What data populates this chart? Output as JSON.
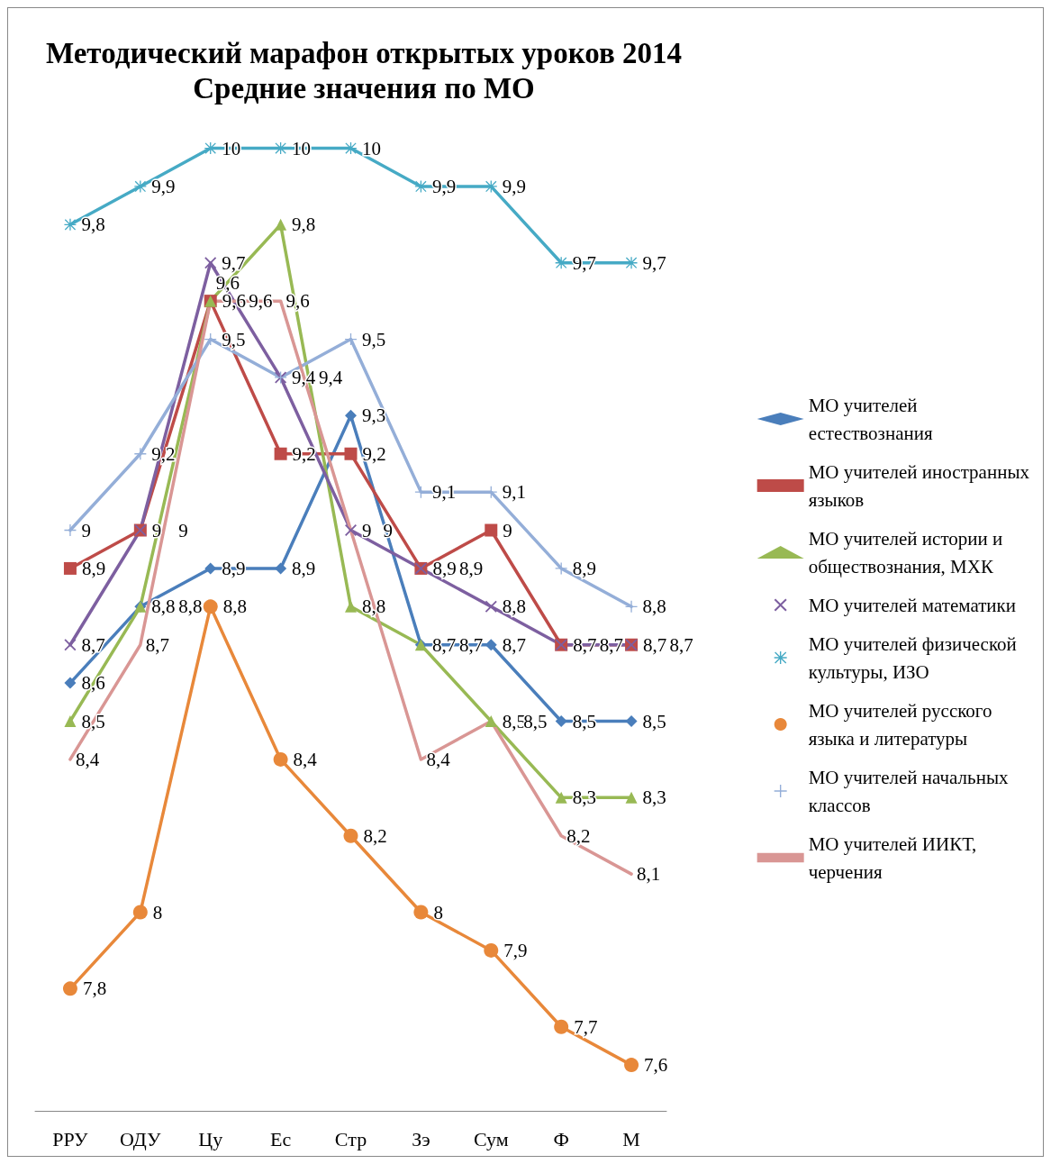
{
  "chart_data": {
    "type": "line",
    "title": "Методический марафон открытых уроков 2014",
    "subtitle": "Средние значения по МО",
    "categories": [
      "РРУ",
      "ОДУ",
      "Цу",
      "Ес",
      "Стр",
      "Зэ",
      "Сум",
      "Ф",
      "М"
    ],
    "grid": false,
    "legend": "right",
    "line_style": "solid",
    "tick_labels": "x",
    "series": [
      {
        "name": "МО учителей естествознания",
        "color": "#4a7ebb",
        "marker": "diamond",
        "values": [
          8.6,
          8.8,
          8.9,
          8.9,
          9.3,
          8.7,
          8.7,
          8.5,
          8.5
        ],
        "value_labels": [
          "8,6",
          "8,8",
          "8,9",
          "8,9",
          "9,3",
          "8,7",
          "8,7",
          "8,5",
          "8,5"
        ]
      },
      {
        "name": "МО учителей иностранных языков",
        "color": "#be4b48",
        "marker": "square",
        "values": [
          8.9,
          9,
          9.6,
          9.2,
          9.2,
          8.9,
          9,
          8.7,
          8.7
        ],
        "value_labels": [
          "8,9",
          "9",
          "9,6",
          "9,2",
          "9,2",
          "8,9",
          "9",
          "8,7",
          "8,7"
        ]
      },
      {
        "name": "МО учителей истории и обществознания, МХК",
        "color": "#98b954",
        "marker": "triangle",
        "values": [
          8.5,
          8.8,
          9.6,
          9.8,
          8.8,
          8.7,
          8.5,
          8.3,
          8.3
        ],
        "value_labels": [
          "8,5",
          "8,8",
          "9,6",
          "9,8",
          "8,8",
          "8,7",
          "8,5",
          "8,3",
          "8,3"
        ]
      },
      {
        "name": "МО учителей математики",
        "color": "#7d5fa0",
        "marker": "cross",
        "values": [
          8.7,
          9,
          9.7,
          9.4,
          9,
          8.9,
          8.8,
          8.7,
          8.7
        ],
        "value_labels": [
          "8,7",
          "9",
          "9,7",
          "9,4",
          "9",
          "8,9",
          "8,8",
          "8,7",
          "8,7"
        ]
      },
      {
        "name": "МО учителей физической культуры, ИЗО",
        "color": "#46aac5",
        "marker": "star",
        "values": [
          9.8,
          9.9,
          10,
          10,
          10,
          9.9,
          9.9,
          9.7,
          9.7
        ],
        "value_labels": [
          "9,8",
          "9,9",
          "10",
          "10",
          "10",
          "9,9",
          "9,9",
          "9,7",
          "9,7"
        ]
      },
      {
        "name": "МО учителей русского языка и литературы",
        "color": "#e8883a",
        "marker": "circle",
        "values": [
          7.8,
          8,
          8.8,
          8.4,
          8.2,
          8,
          7.9,
          7.7,
          7.6
        ],
        "value_labels": [
          "7,8",
          "8",
          "8,8",
          "8,4",
          "8,2",
          "8",
          "7,9",
          "7,7",
          "7,6"
        ]
      },
      {
        "name": "МО учителей начальных классов",
        "color": "#94aed8",
        "marker": "plus",
        "values": [
          9,
          9.2,
          9.5,
          9.4,
          9.5,
          9.1,
          9.1,
          8.9,
          8.8
        ],
        "value_labels": [
          "9",
          "9,2",
          "9,5",
          "9,4",
          "9,5",
          "9,1",
          "9,1",
          "8,9",
          "8,8"
        ]
      },
      {
        "name": "МО учителей ИИКТ, черчения",
        "color": "#d99694",
        "marker": "none",
        "values": [
          8.4,
          8.7,
          9.6,
          9.6,
          9,
          8.4,
          8.5,
          8.2,
          8.1
        ],
        "value_labels": [
          "8,4",
          "8,7",
          "9,6",
          "9,6",
          "9",
          "8,4",
          "8,5",
          "8,2",
          "8,1"
        ]
      }
    ]
  }
}
